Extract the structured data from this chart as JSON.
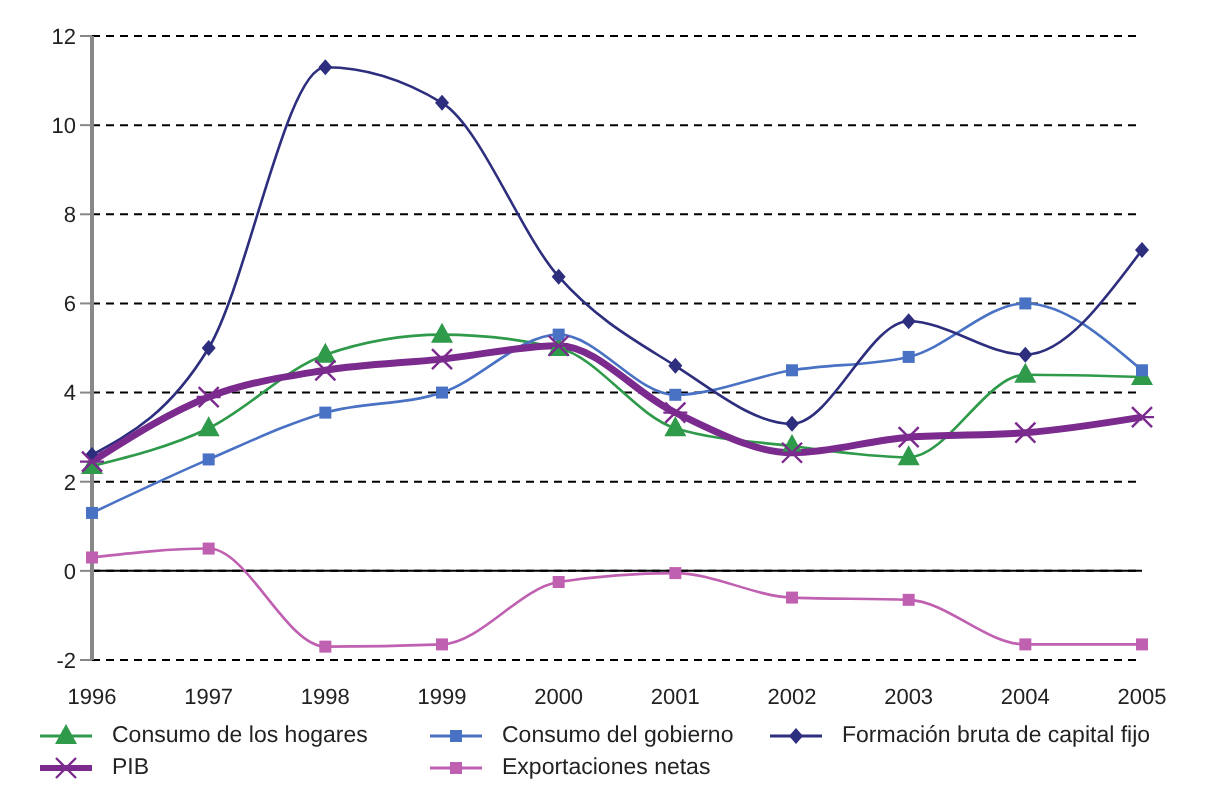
{
  "chart_data": {
    "type": "line",
    "categories": [
      "1996",
      "1997",
      "1998",
      "1999",
      "2000",
      "2001",
      "2002",
      "2003",
      "2004",
      "2005"
    ],
    "series": [
      {
        "name": "Consumo de los hogares",
        "color": "#2e9a4a",
        "marker": "triangle",
        "values": [
          2.35,
          3.2,
          4.85,
          5.3,
          5.0,
          3.2,
          2.8,
          2.55,
          4.4,
          4.35
        ]
      },
      {
        "name": "Consumo del gobierno",
        "color": "#4a72c4",
        "marker": "square",
        "values": [
          1.3,
          2.5,
          3.55,
          4.0,
          5.3,
          3.95,
          4.5,
          4.8,
          6.0,
          4.5
        ]
      },
      {
        "name": "Formación bruta de capital fijo",
        "color": "#2e2e7e",
        "marker": "diamond",
        "values": [
          2.6,
          5.0,
          11.3,
          10.5,
          6.6,
          4.6,
          3.3,
          5.6,
          4.85,
          7.2
        ]
      },
      {
        "name": "PIB",
        "color": "#7b2a8e",
        "marker": "cross",
        "values": [
          2.45,
          3.9,
          4.5,
          4.75,
          5.05,
          3.55,
          2.65,
          3.0,
          3.1,
          3.45
        ]
      },
      {
        "name": "Exportaciones netas",
        "color": "#c060b0",
        "marker": "square",
        "values": [
          0.3,
          0.5,
          -1.7,
          -1.65,
          -0.25,
          -0.05,
          -0.6,
          -0.65,
          -1.65,
          -1.65
        ]
      }
    ],
    "ylim": [
      -2,
      12
    ],
    "yticks": [
      -2,
      0,
      2,
      4,
      6,
      8,
      10,
      12
    ],
    "grid": "y",
    "legend": "bottom"
  }
}
